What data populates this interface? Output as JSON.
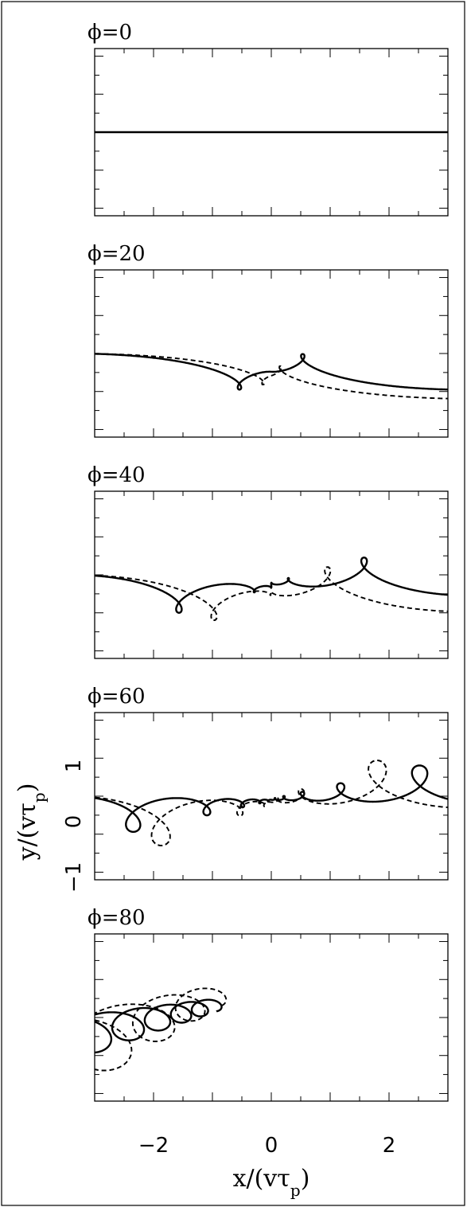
{
  "chart_data": {
    "type": "line",
    "xlabel": "x/(vτ_p)",
    "ylabel": "y/(vτ_p)",
    "xlim": [
      -3,
      3
    ],
    "ylim": [
      -2.2,
      2.2
    ],
    "x_ticks": [
      -2,
      0,
      2
    ],
    "x_tick_labels": [
      "−2",
      "0",
      "2"
    ],
    "y_ticks": [
      -1,
      0,
      1
    ],
    "y_tick_labels": [
      "−1",
      "0",
      "1"
    ],
    "grid": false,
    "legend": "none",
    "line_styles": [
      "solid",
      "dashed"
    ],
    "panels": [
      {
        "phi": 0,
        "label_prefix": "ϕ=",
        "label_value": "0"
      },
      {
        "phi": 20,
        "label_prefix": "ϕ=",
        "label_value": "20"
      },
      {
        "phi": 40,
        "label_prefix": "ϕ=",
        "label_value": "40"
      },
      {
        "phi": 60,
        "label_prefix": "ϕ=",
        "label_value": "60"
      },
      {
        "phi": 80,
        "label_prefix": "ϕ=",
        "label_value": "80"
      }
    ]
  }
}
